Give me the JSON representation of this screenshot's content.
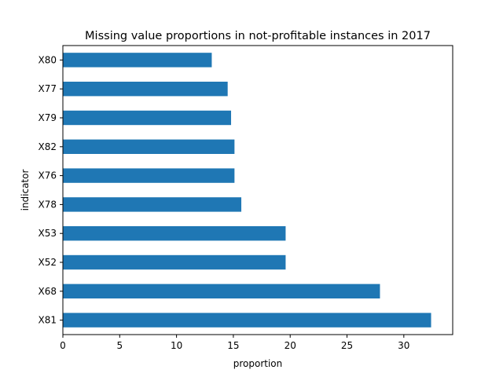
{
  "chart_data": {
    "type": "bar",
    "orientation": "horizontal",
    "title": "Missing value proportions in not-profitable instances in 2017",
    "xlabel": "proportion",
    "ylabel": "indicator",
    "categories": [
      "X81",
      "X68",
      "X52",
      "X53",
      "X78",
      "X76",
      "X82",
      "X79",
      "X77",
      "X80"
    ],
    "values": [
      32.4,
      27.9,
      19.6,
      19.6,
      15.7,
      15.1,
      15.1,
      14.8,
      14.5,
      13.1
    ],
    "xlim": [
      0,
      34.3
    ],
    "xticks": [
      0,
      5,
      10,
      15,
      20,
      25,
      30
    ],
    "grid": false,
    "legend": "none",
    "bar_color": "#1f77b4"
  }
}
